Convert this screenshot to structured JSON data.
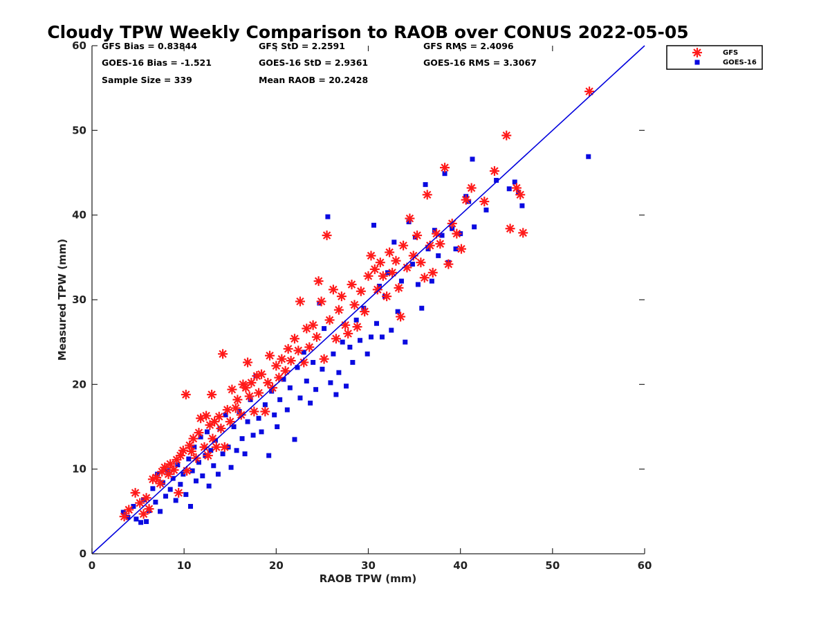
{
  "chart_data": {
    "type": "scatter",
    "title": "Cloudy TPW Weekly Comparison to RAOB over CONUS 2022-05-05",
    "xlabel": "RAOB TPW (mm)",
    "ylabel": "Measured TPW (mm)",
    "xlim": [
      0,
      60
    ],
    "ylim": [
      0,
      60
    ],
    "xticks": [
      "0",
      "10",
      "20",
      "30",
      "40",
      "50",
      "60"
    ],
    "yticks": [
      "0",
      "10",
      "20",
      "30",
      "40",
      "50",
      "60"
    ],
    "grid": false,
    "legend_position": "outside top-right",
    "reference_line": {
      "name": "1:1 line",
      "x": [
        0,
        60
      ],
      "y": [
        0,
        60
      ],
      "color": "#0000dd"
    },
    "stats": [
      "GFS Bias = 0.83844",
      "GFS StD = 2.2591",
      "GFS RMS = 2.4096",
      "GOES-16 Bias = -1.521",
      "GOES-16 StD = 2.9361",
      "GOES-16 RMS = 3.3067",
      "Sample Size = 339",
      "Mean RAOB = 20.2428"
    ],
    "series": [
      {
        "name": "GFS",
        "marker": "asterisk",
        "color": "#ff1a1a",
        "points": [
          [
            3.5,
            4.4
          ],
          [
            4.0,
            5.2
          ],
          [
            4.7,
            7.2
          ],
          [
            5.2,
            6.0
          ],
          [
            5.6,
            4.7
          ],
          [
            5.9,
            6.6
          ],
          [
            6.2,
            5.3
          ],
          [
            6.6,
            8.8
          ],
          [
            7.0,
            9.0
          ],
          [
            7.4,
            8.3
          ],
          [
            7.6,
            9.7
          ],
          [
            7.9,
            10.2
          ],
          [
            8.3,
            9.4
          ],
          [
            8.5,
            10.6
          ],
          [
            8.9,
            9.9
          ],
          [
            9.2,
            11.1
          ],
          [
            9.4,
            7.2
          ],
          [
            9.6,
            11.6
          ],
          [
            9.9,
            12.2
          ],
          [
            10.2,
            18.8
          ],
          [
            10.3,
            9.8
          ],
          [
            10.6,
            12.8
          ],
          [
            10.8,
            12.1
          ],
          [
            11.0,
            13.6
          ],
          [
            11.3,
            11.3
          ],
          [
            11.6,
            14.3
          ],
          [
            11.8,
            16.0
          ],
          [
            12.2,
            12.6
          ],
          [
            12.4,
            16.3
          ],
          [
            12.6,
            11.6
          ],
          [
            12.8,
            15.2
          ],
          [
            13.0,
            18.8
          ],
          [
            13.1,
            13.6
          ],
          [
            13.3,
            15.6
          ],
          [
            13.5,
            12.6
          ],
          [
            13.8,
            16.2
          ],
          [
            14.0,
            14.8
          ],
          [
            14.2,
            23.6
          ],
          [
            14.4,
            12.6
          ],
          [
            14.7,
            17.0
          ],
          [
            15.0,
            15.6
          ],
          [
            15.2,
            19.4
          ],
          [
            15.6,
            17.2
          ],
          [
            15.8,
            18.2
          ],
          [
            16.2,
            16.4
          ],
          [
            16.4,
            20.0
          ],
          [
            16.7,
            19.6
          ],
          [
            16.9,
            22.6
          ],
          [
            17.1,
            18.6
          ],
          [
            17.3,
            20.2
          ],
          [
            17.6,
            16.8
          ],
          [
            17.9,
            21.0
          ],
          [
            18.1,
            19.0
          ],
          [
            18.4,
            21.2
          ],
          [
            18.8,
            16.8
          ],
          [
            19.1,
            20.2
          ],
          [
            19.3,
            23.4
          ],
          [
            19.6,
            19.6
          ],
          [
            20.0,
            22.2
          ],
          [
            20.3,
            20.8
          ],
          [
            20.6,
            23.0
          ],
          [
            21.0,
            21.6
          ],
          [
            21.3,
            24.2
          ],
          [
            21.6,
            22.8
          ],
          [
            22.0,
            25.4
          ],
          [
            22.4,
            24.0
          ],
          [
            22.6,
            29.8
          ],
          [
            23.0,
            22.6
          ],
          [
            23.3,
            26.6
          ],
          [
            23.6,
            24.4
          ],
          [
            24.0,
            27.0
          ],
          [
            24.4,
            25.6
          ],
          [
            24.6,
            32.2
          ],
          [
            24.9,
            29.8
          ],
          [
            25.2,
            23.0
          ],
          [
            25.5,
            37.6
          ],
          [
            25.8,
            27.6
          ],
          [
            26.2,
            31.2
          ],
          [
            26.5,
            25.4
          ],
          [
            26.8,
            28.8
          ],
          [
            27.1,
            30.4
          ],
          [
            27.5,
            27.0
          ],
          [
            27.8,
            26.0
          ],
          [
            28.2,
            31.8
          ],
          [
            28.5,
            29.4
          ],
          [
            28.8,
            26.8
          ],
          [
            29.2,
            31.0
          ],
          [
            29.6,
            28.6
          ],
          [
            30.0,
            32.8
          ],
          [
            30.3,
            35.2
          ],
          [
            30.7,
            33.6
          ],
          [
            31.0,
            31.2
          ],
          [
            31.3,
            34.4
          ],
          [
            31.6,
            32.8
          ],
          [
            32.0,
            30.4
          ],
          [
            32.3,
            35.6
          ],
          [
            32.6,
            33.2
          ],
          [
            33.0,
            34.6
          ],
          [
            33.3,
            31.4
          ],
          [
            33.5,
            28.0
          ],
          [
            33.8,
            36.4
          ],
          [
            34.2,
            33.8
          ],
          [
            34.5,
            39.6
          ],
          [
            34.9,
            35.2
          ],
          [
            35.3,
            37.6
          ],
          [
            35.7,
            34.4
          ],
          [
            36.1,
            32.6
          ],
          [
            36.4,
            42.4
          ],
          [
            36.7,
            36.4
          ],
          [
            37.0,
            33.2
          ],
          [
            37.4,
            37.8
          ],
          [
            37.8,
            36.6
          ],
          [
            38.3,
            45.6
          ],
          [
            38.7,
            34.2
          ],
          [
            39.1,
            39.0
          ],
          [
            39.6,
            37.8
          ],
          [
            40.1,
            36.0
          ],
          [
            40.6,
            41.8
          ],
          [
            41.2,
            43.2
          ],
          [
            42.6,
            41.6
          ],
          [
            43.7,
            45.2
          ],
          [
            45.0,
            49.4
          ],
          [
            45.4,
            38.4
          ],
          [
            46.1,
            43.2
          ],
          [
            46.5,
            42.4
          ],
          [
            46.8,
            37.9
          ],
          [
            54.0,
            54.6
          ]
        ]
      },
      {
        "name": "GOES-16",
        "marker": "square",
        "color": "#0a0ae0",
        "points": [
          [
            3.4,
            4.9
          ],
          [
            3.9,
            4.3
          ],
          [
            4.5,
            5.6
          ],
          [
            4.8,
            4.1
          ],
          [
            5.3,
            3.7
          ],
          [
            5.6,
            6.4
          ],
          [
            5.9,
            3.8
          ],
          [
            6.2,
            5.1
          ],
          [
            6.6,
            7.7
          ],
          [
            6.9,
            6.1
          ],
          [
            7.1,
            9.4
          ],
          [
            7.4,
            5.0
          ],
          [
            7.7,
            8.4
          ],
          [
            8.0,
            6.8
          ],
          [
            8.2,
            9.8
          ],
          [
            8.5,
            7.6
          ],
          [
            8.8,
            8.9
          ],
          [
            9.1,
            6.3
          ],
          [
            9.3,
            10.5
          ],
          [
            9.6,
            8.2
          ],
          [
            9.9,
            9.4
          ],
          [
            10.2,
            7.0
          ],
          [
            10.5,
            11.2
          ],
          [
            10.7,
            5.6
          ],
          [
            10.9,
            9.8
          ],
          [
            11.1,
            12.6
          ],
          [
            11.3,
            8.6
          ],
          [
            11.6,
            10.8
          ],
          [
            11.8,
            13.8
          ],
          [
            12.0,
            9.2
          ],
          [
            12.3,
            11.6
          ],
          [
            12.5,
            14.4
          ],
          [
            12.7,
            8.0
          ],
          [
            12.9,
            12.2
          ],
          [
            13.2,
            10.4
          ],
          [
            13.4,
            13.4
          ],
          [
            13.7,
            9.4
          ],
          [
            13.9,
            14.8
          ],
          [
            14.2,
            11.8
          ],
          [
            14.5,
            16.4
          ],
          [
            14.8,
            12.6
          ],
          [
            15.1,
            10.2
          ],
          [
            15.4,
            15.0
          ],
          [
            15.7,
            12.2
          ],
          [
            16.0,
            16.8
          ],
          [
            16.3,
            13.6
          ],
          [
            16.6,
            11.8
          ],
          [
            16.9,
            15.6
          ],
          [
            17.2,
            18.2
          ],
          [
            17.5,
            14.0
          ],
          [
            17.8,
            21.0
          ],
          [
            18.1,
            16.0
          ],
          [
            18.4,
            14.4
          ],
          [
            18.8,
            17.6
          ],
          [
            19.2,
            11.6
          ],
          [
            19.5,
            19.2
          ],
          [
            19.8,
            16.4
          ],
          [
            20.1,
            15.0
          ],
          [
            20.4,
            18.2
          ],
          [
            20.8,
            20.6
          ],
          [
            21.2,
            17.0
          ],
          [
            21.5,
            19.6
          ],
          [
            22.0,
            13.5
          ],
          [
            22.3,
            22.0
          ],
          [
            22.6,
            18.4
          ],
          [
            23.0,
            23.8
          ],
          [
            23.3,
            20.4
          ],
          [
            23.7,
            17.8
          ],
          [
            24.0,
            22.6
          ],
          [
            24.3,
            19.4
          ],
          [
            24.7,
            29.6
          ],
          [
            25.0,
            21.8
          ],
          [
            25.2,
            26.6
          ],
          [
            25.6,
            39.8
          ],
          [
            25.9,
            20.2
          ],
          [
            26.2,
            23.6
          ],
          [
            26.5,
            18.8
          ],
          [
            26.8,
            21.4
          ],
          [
            27.2,
            25.0
          ],
          [
            27.6,
            19.8
          ],
          [
            28.0,
            24.4
          ],
          [
            28.3,
            22.6
          ],
          [
            28.7,
            27.6
          ],
          [
            29.1,
            25.2
          ],
          [
            29.5,
            29.0
          ],
          [
            29.9,
            23.6
          ],
          [
            30.3,
            25.6
          ],
          [
            30.6,
            38.8
          ],
          [
            30.9,
            27.2
          ],
          [
            31.2,
            31.6
          ],
          [
            31.5,
            25.6
          ],
          [
            31.8,
            30.4
          ],
          [
            32.1,
            33.2
          ],
          [
            32.5,
            26.4
          ],
          [
            32.8,
            36.8
          ],
          [
            33.2,
            28.6
          ],
          [
            33.6,
            32.2
          ],
          [
            34.0,
            25.0
          ],
          [
            34.4,
            39.2
          ],
          [
            34.8,
            34.2
          ],
          [
            35.1,
            37.4
          ],
          [
            35.4,
            31.8
          ],
          [
            35.8,
            29.0
          ],
          [
            36.2,
            43.6
          ],
          [
            36.5,
            36.0
          ],
          [
            36.9,
            32.2
          ],
          [
            37.2,
            38.2
          ],
          [
            37.6,
            35.2
          ],
          [
            38.0,
            37.6
          ],
          [
            38.3,
            44.9
          ],
          [
            38.7,
            34.4
          ],
          [
            39.1,
            38.4
          ],
          [
            39.5,
            36.0
          ],
          [
            40.0,
            37.8
          ],
          [
            40.6,
            42.2
          ],
          [
            40.9,
            41.6
          ],
          [
            41.3,
            46.6
          ],
          [
            41.5,
            38.6
          ],
          [
            42.8,
            40.6
          ],
          [
            43.9,
            44.1
          ],
          [
            45.3,
            43.1
          ],
          [
            45.9,
            43.9
          ],
          [
            46.3,
            42.7
          ],
          [
            46.7,
            41.1
          ],
          [
            53.9,
            46.9
          ]
        ]
      }
    ]
  }
}
